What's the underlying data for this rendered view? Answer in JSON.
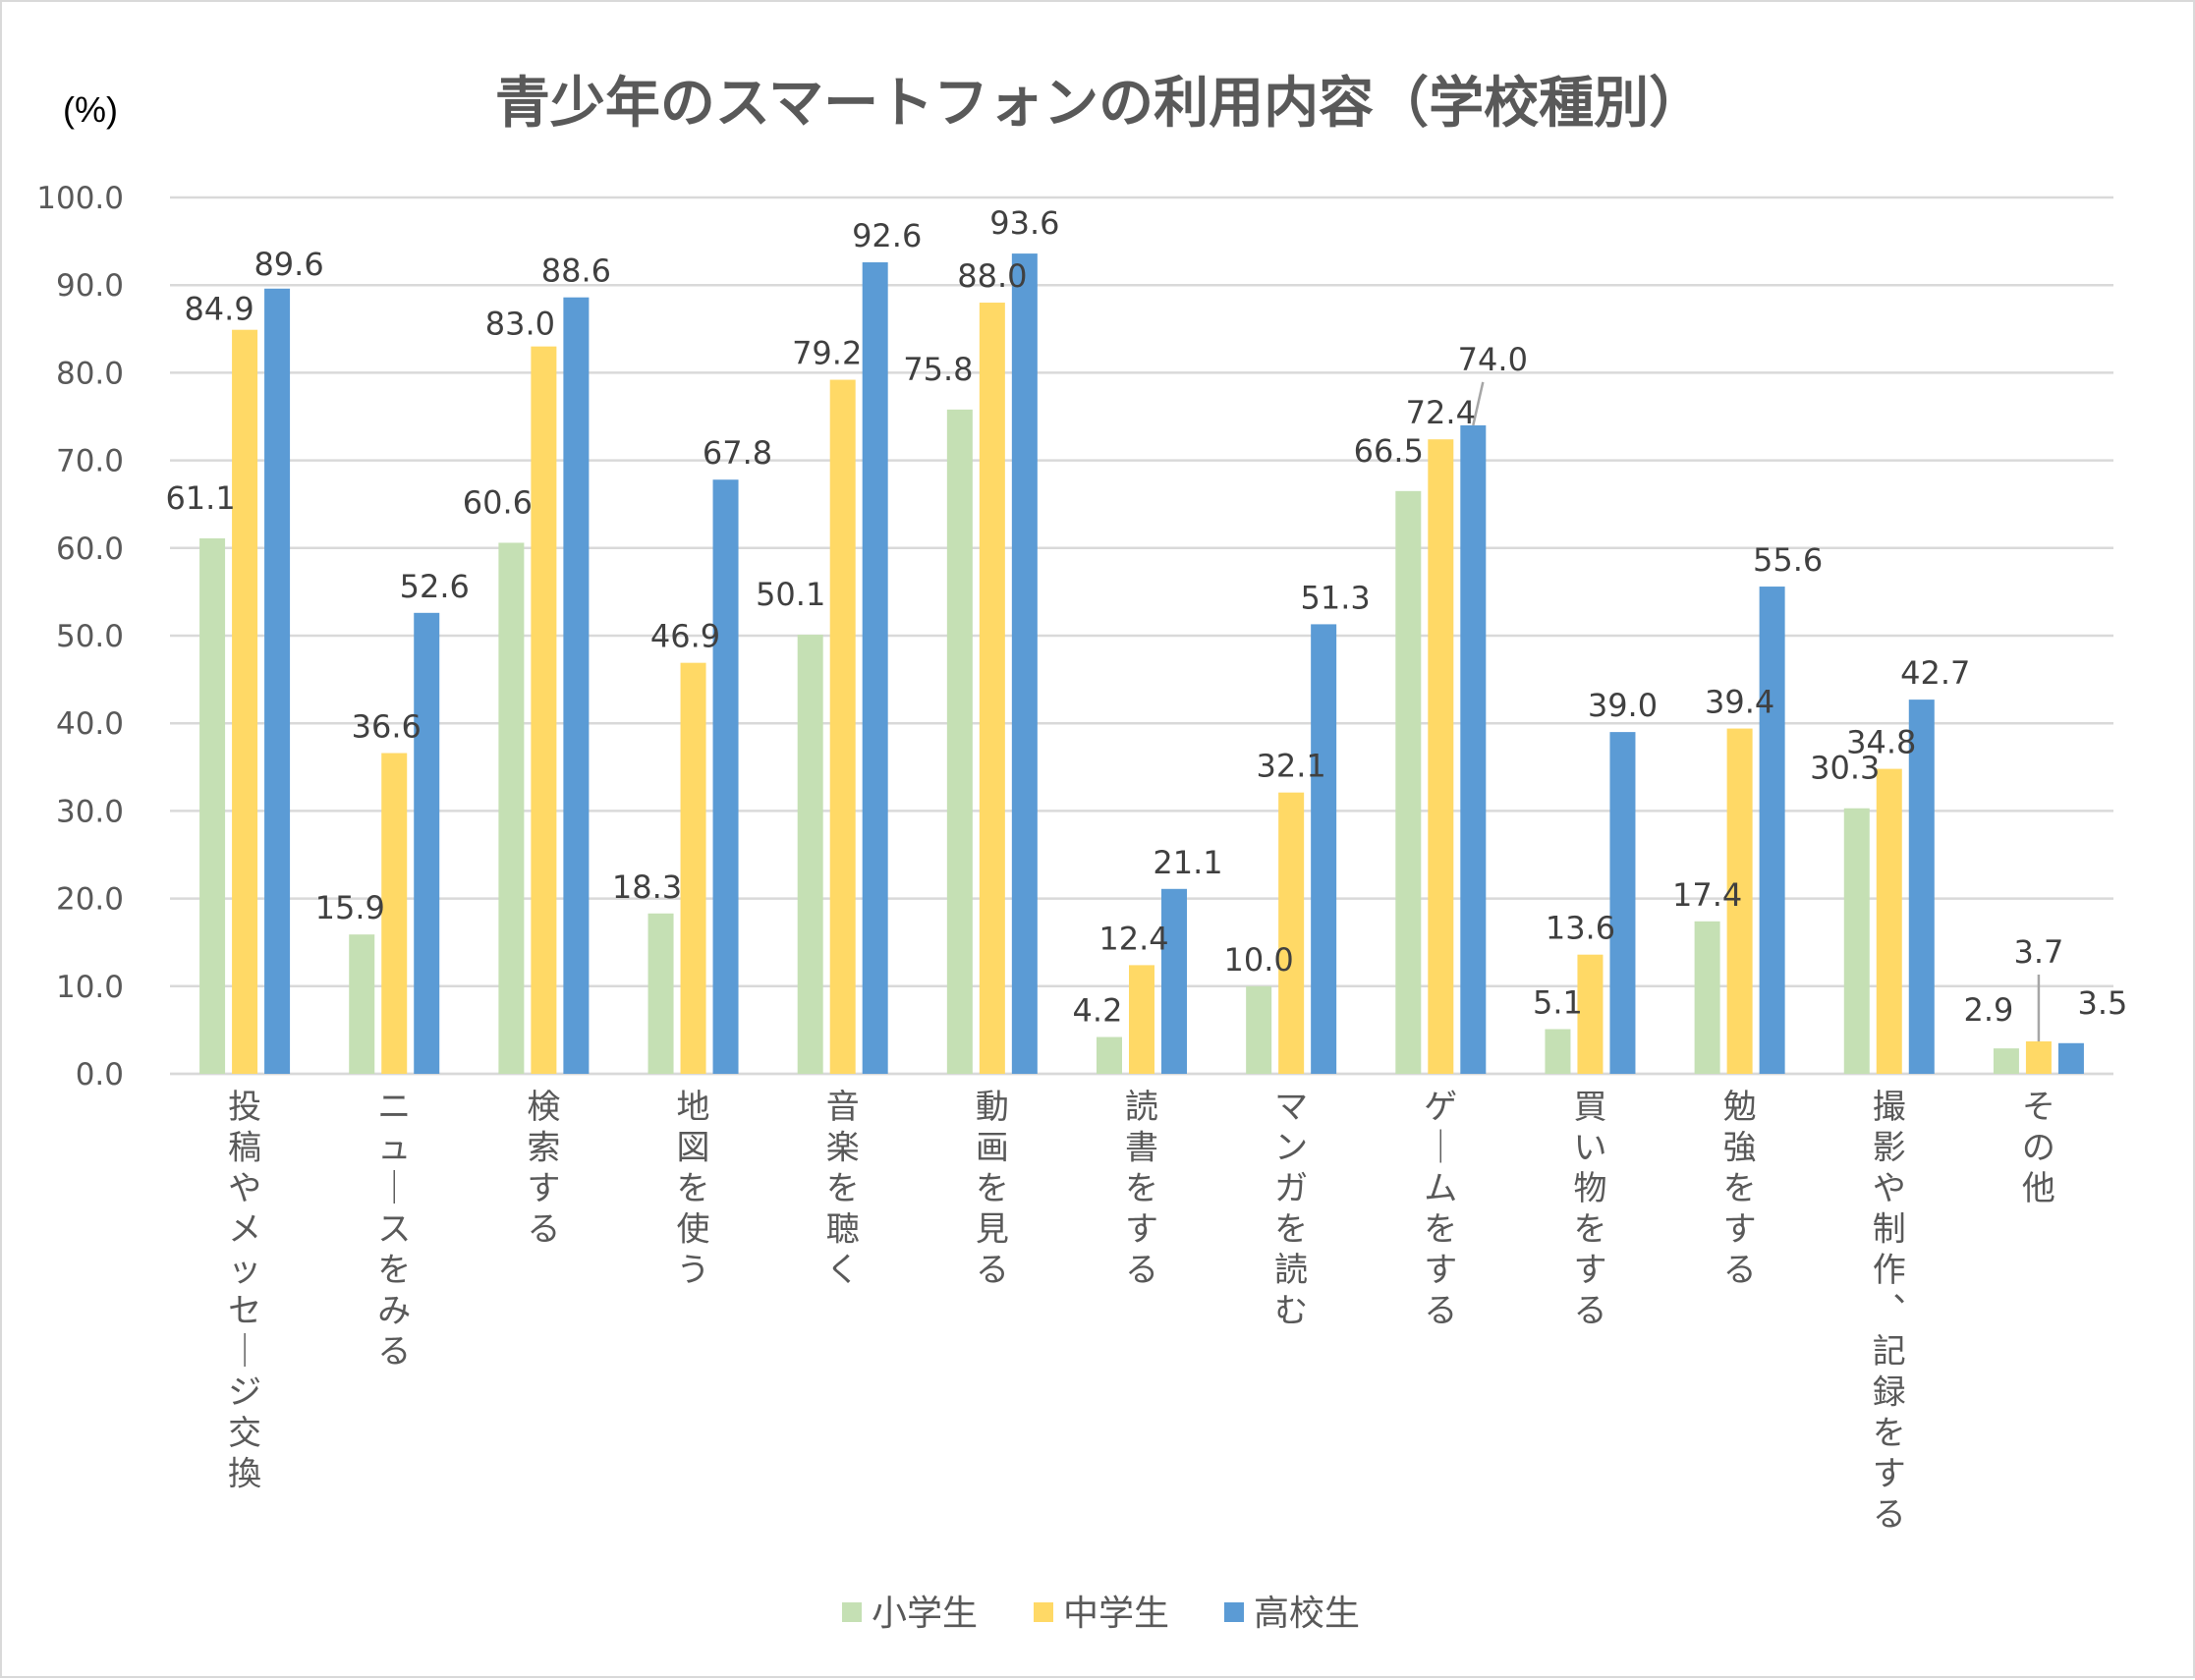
{
  "chart_data": {
    "type": "bar",
    "title": "青少年のスマートフォンの利用内容（学校種別）",
    "ylabel": "(%)",
    "xlabel": "",
    "ylim": [
      0,
      100
    ],
    "yticks": [
      "0.0",
      "10.0",
      "20.0",
      "30.0",
      "40.0",
      "50.0",
      "60.0",
      "70.0",
      "80.0",
      "90.0",
      "100.0"
    ],
    "grid": true,
    "legend_position": "bottom",
    "categories": [
      "投稿やメッセージ交換",
      "ニュースをみる",
      "検索する",
      "地図を使う",
      "音楽を聴く",
      "動画を見る",
      "読書をする",
      "マンガを読む",
      "ゲームをする",
      "買い物をする",
      "勉強をする",
      "撮影や制作、記録をする",
      "その他"
    ],
    "series": [
      {
        "name": "小学生",
        "color": "#c5e0b4",
        "values": [
          61.1,
          15.9,
          60.6,
          18.3,
          50.1,
          75.8,
          4.2,
          10.0,
          66.5,
          5.1,
          17.4,
          30.3,
          2.9
        ]
      },
      {
        "name": "中学生",
        "color": "#ffd966",
        "values": [
          84.9,
          36.6,
          83.0,
          46.9,
          79.2,
          88.0,
          12.4,
          32.1,
          72.4,
          13.6,
          39.4,
          34.8,
          3.7
        ]
      },
      {
        "name": "高校生",
        "color": "#5b9bd5",
        "values": [
          89.6,
          52.6,
          88.6,
          67.8,
          92.6,
          93.6,
          21.1,
          51.3,
          74.0,
          39.0,
          55.6,
          42.7,
          3.5
        ]
      }
    ]
  }
}
